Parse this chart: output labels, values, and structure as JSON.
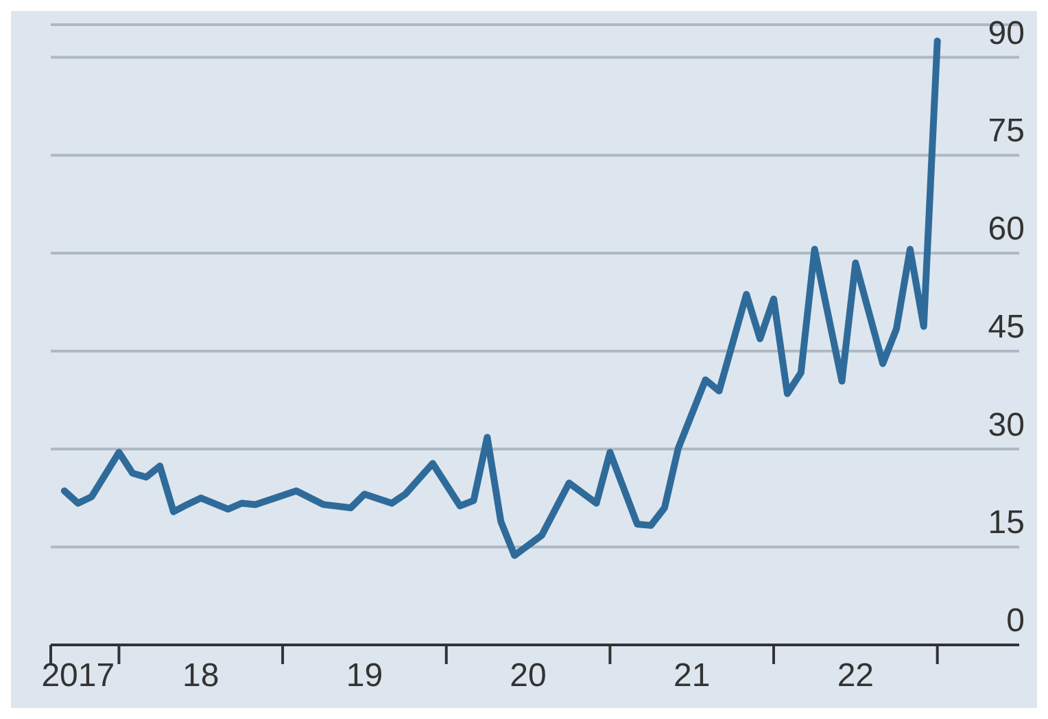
{
  "chart_data": {
    "type": "line",
    "x": [
      "2017-09",
      "2017-10",
      "2017-11",
      "2018-01",
      "2018-02",
      "2018-03",
      "2018-04",
      "2018-05",
      "2018-06",
      "2018-07",
      "2018-09",
      "2018-10",
      "2018-11",
      "2019-02",
      "2019-04",
      "2019-06",
      "2019-07",
      "2019-09",
      "2019-10",
      "2019-12",
      "2020-02",
      "2020-03",
      "2020-04",
      "2020-05",
      "2020-06",
      "2020-08",
      "2020-10",
      "2020-12",
      "2021-01",
      "2021-03",
      "2021-04",
      "2021-05",
      "2021-06",
      "2021-08",
      "2021-09",
      "2021-11",
      "2021-12",
      "2022-01",
      "2022-02",
      "2022-03",
      "2022-04",
      "2022-06",
      "2022-07",
      "2022-09",
      "2022-10",
      "2022-11",
      "2022-12",
      "2023-01"
    ],
    "series": [
      {
        "color": "#2f6b9a",
        "values": [
          23.6,
          21.7,
          22.7,
          29.5,
          26.3,
          25.7,
          27.4,
          20.4,
          21.5,
          22.5,
          20.8,
          21.7,
          21.5,
          23.6,
          21.5,
          21.0,
          23.1,
          21.7,
          23.1,
          27.8,
          21.3,
          22.1,
          31.8,
          18.9,
          13.7,
          16.8,
          24.8,
          21.7,
          29.5,
          18.5,
          18.3,
          21.0,
          30.1,
          40.6,
          38.9,
          53.7,
          46.9,
          53.0,
          38.5,
          41.7,
          60.6,
          40.4,
          58.5,
          43.1,
          48.4,
          60.6,
          48.8,
          92.5
        ]
      }
    ],
    "xlim": [
      "2017-08",
      "2023-07"
    ],
    "xticks": [
      {
        "value": "2017-08",
        "label": null
      },
      {
        "value": "2017-10",
        "label": "2017"
      },
      {
        "value": "2018-01",
        "label": null
      },
      {
        "value": "2018-07",
        "label": "18"
      },
      {
        "value": "2019-01",
        "label": null
      },
      {
        "value": "2019-07",
        "label": "19"
      },
      {
        "value": "2020-01",
        "label": null
      },
      {
        "value": "2020-07",
        "label": "20"
      },
      {
        "value": "2021-01",
        "label": null
      },
      {
        "value": "2021-07",
        "label": "21"
      },
      {
        "value": "2022-01",
        "label": null
      },
      {
        "value": "2022-07",
        "label": "22"
      },
      {
        "value": "2023-01",
        "label": null
      }
    ],
    "ylim": [
      0,
      95
    ],
    "yticks": [
      0,
      15,
      30,
      45,
      60,
      75,
      90
    ],
    "grid": "y"
  }
}
